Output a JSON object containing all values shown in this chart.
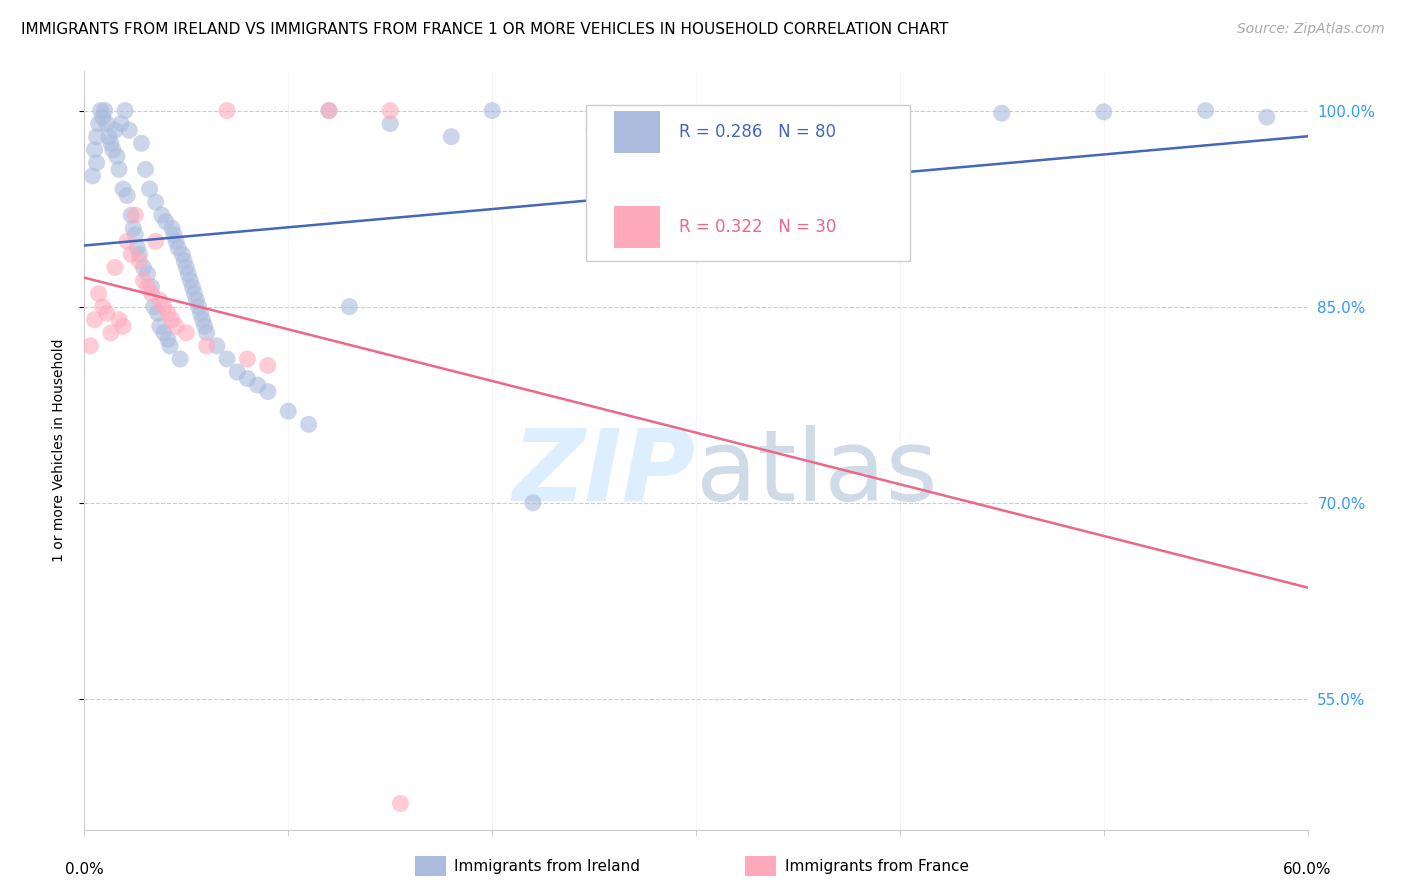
{
  "title": "IMMIGRANTS FROM IRELAND VS IMMIGRANTS FROM FRANCE 1 OR MORE VEHICLES IN HOUSEHOLD CORRELATION CHART",
  "source": "Source: ZipAtlas.com",
  "ylabel": "1 or more Vehicles in Household",
  "ireland_color": "#aabbdd",
  "france_color": "#ffaabb",
  "ireland_line_color": "#4466bb",
  "france_line_color": "#ee6688",
  "ireland_R": 0.286,
  "ireland_N": 80,
  "france_R": 0.322,
  "france_N": 30,
  "xlim": [
    0.0,
    60.0
  ],
  "ylim": [
    45.0,
    103.0
  ],
  "ytick_positions": [
    55.0,
    70.0,
    85.0,
    100.0
  ],
  "ytick_labels": [
    "55.0%",
    "70.0%",
    "85.0%",
    "100.0%"
  ],
  "watermark_color": "#ddeeff",
  "grid_color": "#cccccc",
  "title_fontsize": 11,
  "source_fontsize": 10,
  "tick_fontsize": 11,
  "legend_fontsize": 12,
  "ylabel_fontsize": 10,
  "ireland_x": [
    0.4,
    0.5,
    0.6,
    0.6,
    0.7,
    0.8,
    0.9,
    1.0,
    1.1,
    1.2,
    1.3,
    1.4,
    1.5,
    1.6,
    1.7,
    1.8,
    1.9,
    2.0,
    2.1,
    2.2,
    2.3,
    2.4,
    2.5,
    2.6,
    2.7,
    2.8,
    2.9,
    3.0,
    3.1,
    3.2,
    3.3,
    3.4,
    3.5,
    3.6,
    3.7,
    3.8,
    3.9,
    4.0,
    4.1,
    4.2,
    4.3,
    4.4,
    4.5,
    4.6,
    4.7,
    4.8,
    4.9,
    5.0,
    5.1,
    5.2,
    5.3,
    5.4,
    5.5,
    5.6,
    5.7,
    5.8,
    5.9,
    6.0,
    6.5,
    7.0,
    7.5,
    8.0,
    8.5,
    9.0,
    10.0,
    11.0,
    12.0,
    13.0,
    15.0,
    18.0,
    20.0,
    22.0,
    25.0,
    30.0,
    35.0,
    40.0,
    45.0,
    50.0,
    55.0,
    58.0
  ],
  "ireland_y": [
    95.0,
    97.0,
    96.0,
    98.0,
    99.0,
    100.0,
    99.5,
    100.0,
    99.0,
    98.0,
    97.5,
    97.0,
    98.5,
    96.5,
    95.5,
    99.0,
    94.0,
    100.0,
    93.5,
    98.5,
    92.0,
    91.0,
    90.5,
    89.5,
    89.0,
    97.5,
    88.0,
    95.5,
    87.5,
    94.0,
    86.5,
    85.0,
    93.0,
    84.5,
    83.5,
    92.0,
    83.0,
    91.5,
    82.5,
    82.0,
    91.0,
    90.5,
    90.0,
    89.5,
    81.0,
    89.0,
    88.5,
    88.0,
    87.5,
    87.0,
    86.5,
    86.0,
    85.5,
    85.0,
    84.5,
    84.0,
    83.5,
    83.0,
    82.0,
    81.0,
    80.0,
    79.5,
    79.0,
    78.5,
    77.0,
    76.0,
    100.0,
    85.0,
    99.0,
    98.0,
    100.0,
    70.0,
    98.5,
    99.0,
    99.5,
    99.5,
    99.8,
    99.9,
    100.0,
    99.5
  ],
  "france_x": [
    0.3,
    0.5,
    0.7,
    0.9,
    1.1,
    1.3,
    1.5,
    1.7,
    1.9,
    2.1,
    2.3,
    2.5,
    2.7,
    2.9,
    3.1,
    3.3,
    3.5,
    3.7,
    3.9,
    4.1,
    4.3,
    4.5,
    5.0,
    6.0,
    7.0,
    8.0,
    9.0,
    12.0,
    15.0,
    15.5
  ],
  "france_y": [
    82.0,
    84.0,
    86.0,
    85.0,
    84.5,
    83.0,
    88.0,
    84.0,
    83.5,
    90.0,
    89.0,
    92.0,
    88.5,
    87.0,
    86.5,
    86.0,
    90.0,
    85.5,
    85.0,
    84.5,
    84.0,
    83.5,
    83.0,
    82.0,
    100.0,
    81.0,
    80.5,
    100.0,
    100.0,
    47.0
  ]
}
